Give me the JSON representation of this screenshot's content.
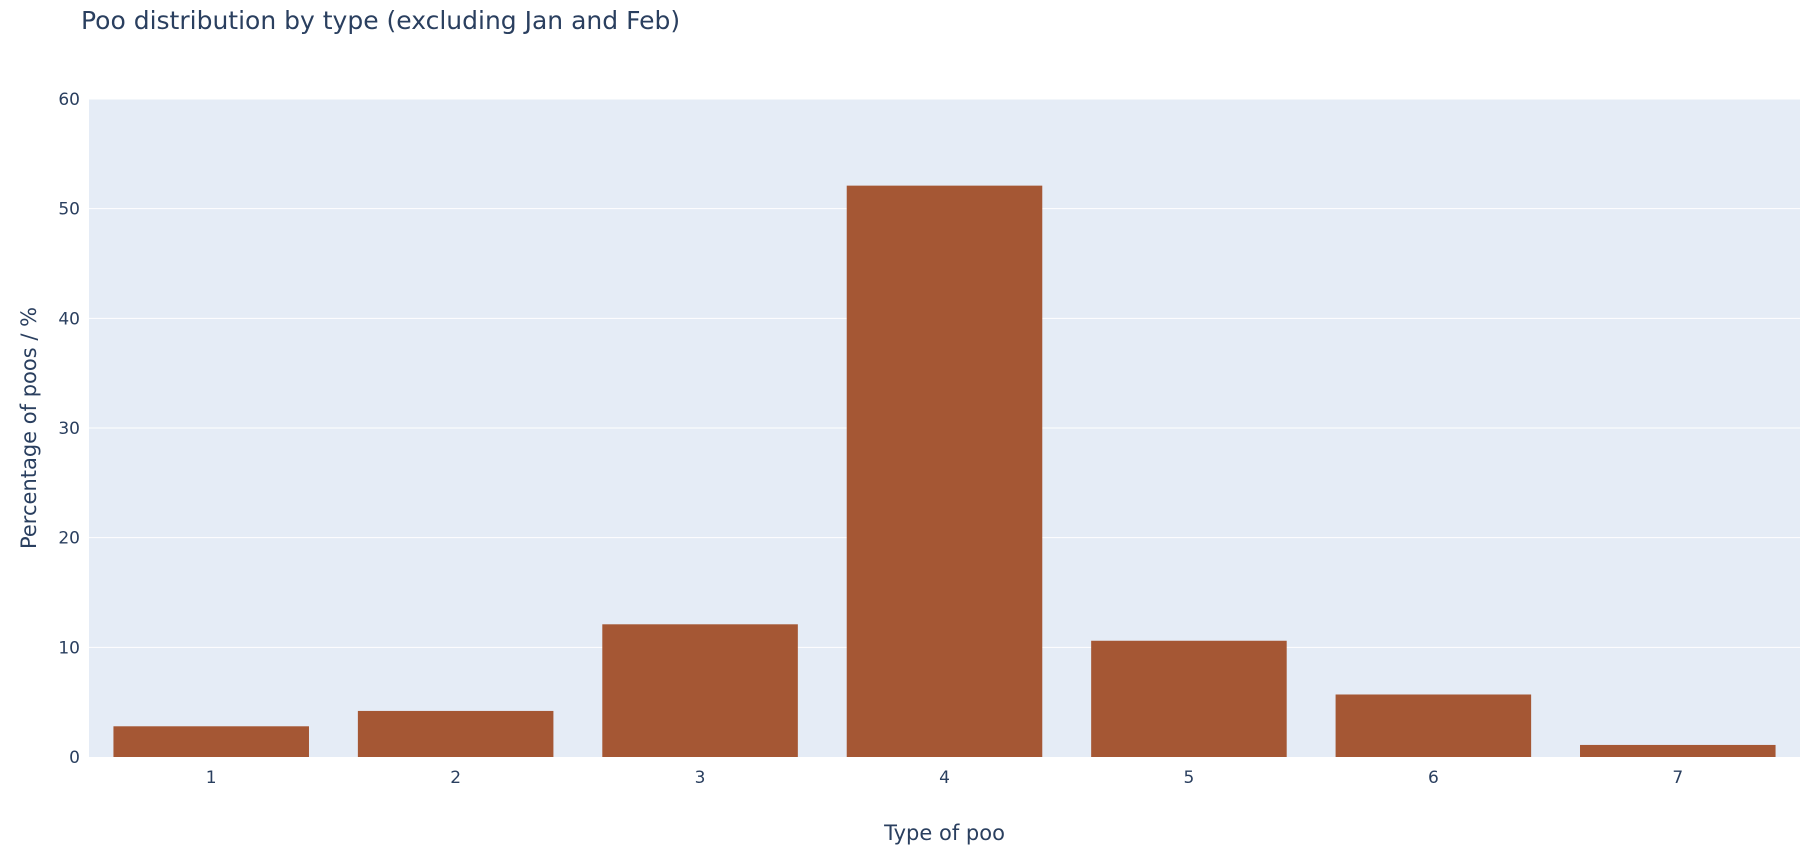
{
  "chart_data": {
    "type": "bar",
    "title": "Poo distribution by type (excluding Jan and Feb)",
    "xlabel": "Type of poo",
    "ylabel": "Percentage of poos / %",
    "categories": [
      "1",
      "2",
      "3",
      "4",
      "5",
      "6",
      "7"
    ],
    "values": [
      2.8,
      4.2,
      12.1,
      52.1,
      10.6,
      5.7,
      1.1
    ],
    "ylim": [
      0,
      60
    ],
    "yticks": [
      "0",
      "10",
      "20",
      "30",
      "40",
      "50",
      "60"
    ],
    "grid": true,
    "legend": "none",
    "colors": {
      "bar": "#a55734",
      "plot_background": "#e5ecf6",
      "grid": "#ffffff",
      "text": "#2a3f5f"
    }
  }
}
